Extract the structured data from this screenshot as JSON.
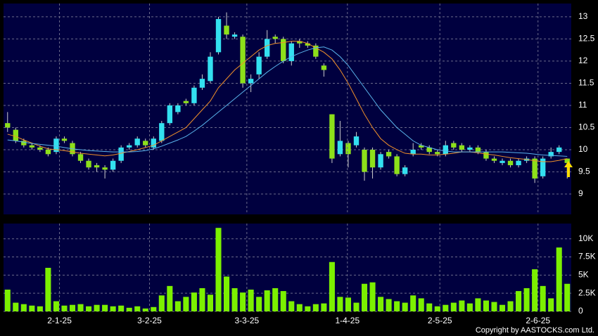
{
  "chart_data": [
    {
      "type": "candlestick",
      "up_color": "#33e0f0",
      "down_color": "#8de01a",
      "xlim": [
        -0.5,
        69.5
      ],
      "ylim": [
        8.54,
        13.3
      ],
      "yticks": [
        9,
        9.5,
        10,
        10.5,
        11,
        11.5,
        12,
        12.5,
        13
      ],
      "grid": true,
      "open": [
        10.6,
        10.45,
        10.2,
        10.1,
        10.05,
        10.0,
        9.95,
        10.25,
        10.15,
        9.9,
        9.75,
        9.65,
        9.6,
        9.55,
        9.75,
        10.05,
        10.1,
        10.2,
        10.05,
        10.2,
        10.6,
        10.85,
        11.1,
        11.05,
        11.4,
        11.55,
        12.2,
        12.8,
        12.55,
        12.55,
        11.5,
        11.7,
        12.1,
        12.55,
        12.5,
        12.0,
        12.45,
        12.4,
        12.35,
        11.9,
        10.8,
        9.9,
        10.15,
        10.1,
        10.0,
        10.0,
        9.6,
        9.95,
        9.85,
        9.45,
        9.9,
        10.1,
        10.05,
        9.95,
        9.9,
        10.15,
        10.1,
        10.0,
        10.05,
        9.95,
        9.8,
        9.7,
        9.75,
        9.65,
        9.75,
        9.8,
        9.4,
        9.85,
        9.95,
        9.8
      ],
      "high": [
        10.85,
        10.5,
        10.25,
        10.15,
        10.1,
        10.05,
        10.3,
        10.3,
        10.2,
        9.95,
        9.8,
        9.7,
        9.65,
        9.8,
        10.1,
        10.15,
        10.3,
        10.25,
        10.3,
        10.65,
        11.05,
        11.05,
        11.15,
        11.45,
        11.7,
        12.2,
        13.0,
        13.1,
        12.65,
        12.6,
        11.7,
        12.2,
        12.7,
        12.6,
        12.55,
        12.45,
        12.5,
        12.45,
        12.4,
        11.95,
        10.8,
        10.65,
        10.2,
        10.4,
        10.05,
        10.05,
        9.95,
        10.0,
        9.9,
        9.65,
        10.15,
        10.15,
        10.1,
        10.0,
        10.2,
        10.2,
        10.15,
        10.1,
        10.1,
        10.0,
        9.85,
        9.8,
        9.8,
        9.8,
        9.85,
        9.85,
        9.85,
        10.05,
        10.1,
        9.8
      ],
      "low": [
        10.4,
        10.15,
        10.05,
        10.0,
        9.95,
        9.85,
        9.9,
        10.15,
        9.85,
        9.7,
        9.55,
        9.5,
        9.35,
        9.5,
        9.7,
        10.0,
        10.05,
        10.05,
        10.0,
        10.15,
        10.55,
        10.8,
        11.0,
        11.0,
        11.35,
        11.5,
        12.15,
        12.5,
        12.5,
        11.4,
        11.3,
        11.6,
        12.05,
        12.4,
        11.95,
        11.9,
        12.3,
        12.3,
        12.05,
        11.65,
        9.7,
        9.85,
        9.6,
        10.05,
        9.3,
        9.35,
        9.55,
        9.8,
        9.4,
        9.4,
        9.85,
        10.0,
        9.9,
        9.85,
        9.85,
        10.0,
        9.95,
        9.95,
        9.9,
        9.75,
        9.7,
        9.65,
        9.6,
        9.6,
        9.7,
        9.25,
        9.35,
        9.8,
        9.9,
        9.35
      ],
      "close": [
        10.5,
        10.2,
        10.1,
        10.05,
        10.0,
        9.9,
        10.25,
        10.2,
        9.9,
        9.75,
        9.6,
        9.6,
        9.55,
        9.75,
        10.05,
        10.1,
        10.25,
        10.1,
        10.25,
        10.6,
        11.0,
        11.0,
        11.05,
        11.4,
        11.6,
        12.1,
        12.95,
        12.6,
        12.6,
        11.5,
        11.6,
        12.1,
        12.5,
        12.5,
        12.0,
        12.4,
        12.4,
        12.35,
        12.1,
        11.8,
        9.8,
        10.2,
        9.9,
        10.3,
        9.5,
        9.6,
        9.9,
        9.85,
        9.45,
        9.6,
        10.0,
        10.05,
        9.95,
        9.9,
        10.1,
        10.05,
        10.0,
        10.05,
        9.95,
        9.8,
        9.75,
        9.75,
        9.65,
        9.75,
        9.8,
        9.35,
        9.8,
        9.95,
        10.05,
        9.7
      ],
      "series": [
        {
          "color": "#f0902a",
          "values": [
            10.35,
            10.3,
            10.22,
            10.15,
            10.08,
            10.02,
            10.0,
            9.98,
            9.95,
            9.92,
            9.9,
            9.88,
            9.86,
            9.88,
            9.92,
            9.96,
            10.0,
            10.05,
            10.1,
            10.2,
            10.3,
            10.4,
            10.5,
            10.7,
            10.9,
            11.1,
            11.4,
            11.6,
            11.8,
            11.95,
            12.1,
            12.25,
            12.35,
            12.4,
            12.42,
            12.45,
            12.45,
            12.4,
            12.3,
            12.2,
            12.05,
            11.8,
            11.5,
            11.15,
            10.8,
            10.5,
            10.25,
            10.1,
            10.0,
            9.92,
            9.9,
            9.9,
            9.88,
            9.88,
            9.9,
            9.92,
            9.95,
            9.95,
            9.93,
            9.9,
            9.88,
            9.85,
            9.82,
            9.8,
            9.78,
            9.75,
            9.73,
            9.73,
            9.76,
            9.8
          ]
        },
        {
          "color": "#5ab4ec",
          "values": [
            10.22,
            10.2,
            10.17,
            10.14,
            10.12,
            10.1,
            10.08,
            10.05,
            10.02,
            10.0,
            9.98,
            9.97,
            9.96,
            9.95,
            9.95,
            9.95,
            9.96,
            9.98,
            10.02,
            10.08,
            10.15,
            10.22,
            10.3,
            10.42,
            10.55,
            10.7,
            10.85,
            11.0,
            11.15,
            11.3,
            11.45,
            11.6,
            11.75,
            11.88,
            12.0,
            12.1,
            12.18,
            12.25,
            12.3,
            12.32,
            12.25,
            12.1,
            11.9,
            11.65,
            11.4,
            11.15,
            10.9,
            10.7,
            10.5,
            10.35,
            10.2,
            10.1,
            10.05,
            10.0,
            9.97,
            9.95,
            9.95,
            9.95,
            9.95,
            9.95,
            9.95,
            9.95,
            9.94,
            9.93,
            9.92,
            9.9,
            9.88,
            9.87,
            9.86,
            9.85
          ]
        }
      ]
    },
    {
      "type": "bar",
      "color": "#7cf000",
      "xlim": [
        -0.5,
        69.5
      ],
      "ylim": [
        0,
        12100
      ],
      "yticks": [
        0,
        {
          "value": 2500,
          "label": "2.5K"
        },
        {
          "value": 5000,
          "label": "5K"
        },
        {
          "value": 7500,
          "label": "7.5K"
        },
        {
          "value": 10000,
          "label": "10K"
        }
      ],
      "xticks": [
        {
          "value": 6.4,
          "label": "2-1-25"
        },
        {
          "value": 17.5,
          "label": "3-2-25"
        },
        {
          "value": 29.5,
          "label": "3-3-25"
        },
        {
          "value": 41.9,
          "label": "1-4-25"
        },
        {
          "value": 53.3,
          "label": "2-5-25"
        },
        {
          "value": 65.4,
          "label": "2-6-25"
        }
      ],
      "grid": true,
      "values": [
        3000,
        1200,
        1000,
        800,
        700,
        6000,
        1400,
        800,
        900,
        1000,
        700,
        900,
        900,
        700,
        800,
        500,
        700,
        400,
        600,
        2200,
        3500,
        1400,
        2000,
        2600,
        3200,
        2300,
        11500,
        4800,
        3200,
        2600,
        3000,
        2000,
        2900,
        3200,
        2800,
        1400,
        1000,
        700,
        1000,
        1100,
        6800,
        2000,
        1900,
        1200,
        3800,
        4000,
        2000,
        1700,
        1400,
        1200,
        2200,
        1800,
        1100,
        700,
        900,
        1200,
        1500,
        1100,
        1800,
        1500,
        1300,
        900,
        1400,
        2800,
        3200,
        5800,
        3500,
        1800,
        8800,
        3800
      ]
    }
  ],
  "copyright": "Copyright by AASTOCKS.com Ltd."
}
